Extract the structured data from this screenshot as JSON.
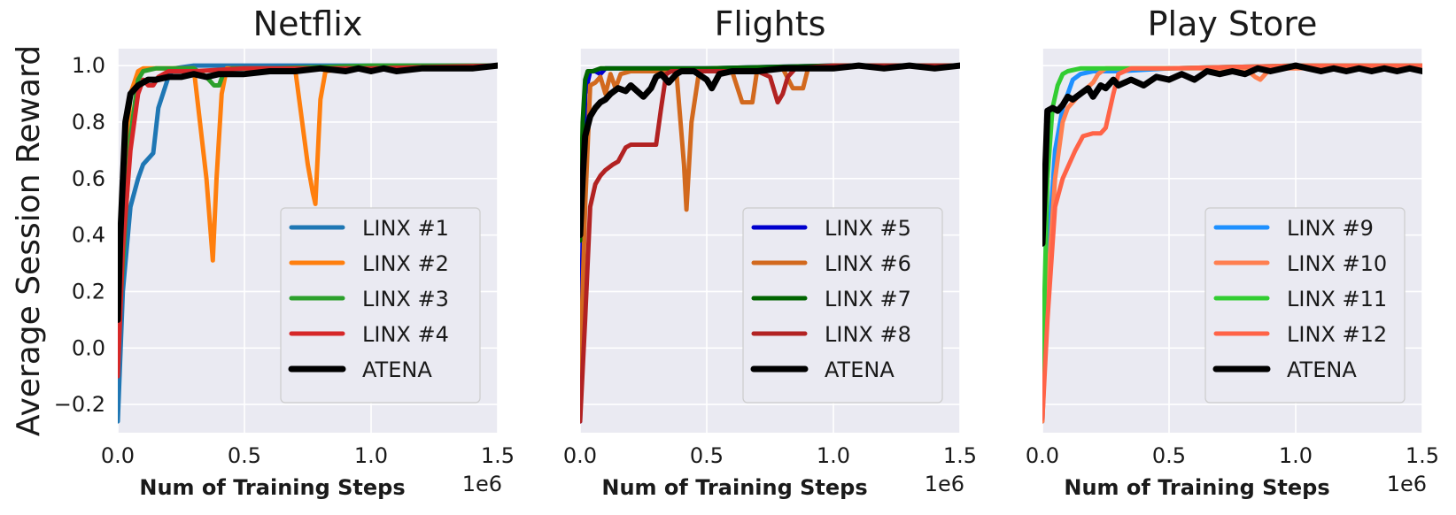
{
  "ylabel": "Average Session Reward",
  "chart_data": [
    {
      "type": "line",
      "title": "Netflix",
      "xlabel": "Num of Training Steps",
      "x_offset_label": "1e6",
      "xlim": [
        0,
        1.5
      ],
      "ylim": [
        -0.3,
        1.06
      ],
      "xticks": [
        0.0,
        0.5,
        1.0,
        1.5
      ],
      "xtick_labels": [
        "0.0",
        "0.5",
        "1.0",
        "1.5"
      ],
      "yticks": [
        -0.2,
        0.0,
        0.2,
        0.4,
        0.6,
        0.8,
        1.0
      ],
      "ytick_labels": [
        "−0.2",
        "0.0",
        "0.2",
        "0.4",
        "0.6",
        "0.8",
        "1.0"
      ],
      "grid": true,
      "legend": "lower-right",
      "series": [
        {
          "name": "LINX #1",
          "color": "#1f77b4",
          "x": [
            0,
            0.02,
            0.05,
            0.08,
            0.1,
            0.14,
            0.16,
            0.2,
            0.22,
            0.3,
            0.5,
            1.0,
            1.5
          ],
          "y": [
            -0.26,
            0.2,
            0.5,
            0.6,
            0.65,
            0.69,
            0.85,
            0.96,
            0.99,
            1.0,
            1.0,
            1.0,
            1.0
          ]
        },
        {
          "name": "LINX #2",
          "color": "#ff7f0e",
          "x": [
            0,
            0.02,
            0.05,
            0.08,
            0.1,
            0.15,
            0.3,
            0.35,
            0.375,
            0.39,
            0.41,
            0.43,
            0.5,
            0.7,
            0.75,
            0.77,
            0.78,
            0.8,
            0.82,
            0.9,
            1.5
          ],
          "y": [
            0.0,
            0.5,
            0.9,
            0.98,
            0.99,
            0.99,
            0.99,
            0.6,
            0.31,
            0.6,
            0.9,
            0.99,
            0.99,
            0.99,
            0.65,
            0.55,
            0.51,
            0.88,
            0.98,
            0.99,
            1.0
          ]
        },
        {
          "name": "LINX #3",
          "color": "#2ca02c",
          "x": [
            0,
            0.02,
            0.05,
            0.08,
            0.1,
            0.15,
            0.3,
            0.35,
            0.38,
            0.4,
            0.42,
            0.45,
            0.6,
            1.0,
            1.5
          ],
          "y": [
            0.0,
            0.3,
            0.75,
            0.95,
            0.98,
            0.99,
            0.99,
            0.96,
            0.93,
            0.93,
            0.98,
            0.99,
            0.99,
            1.0,
            1.0
          ]
        },
        {
          "name": "LINX #4",
          "color": "#d62728",
          "x": [
            0,
            0.02,
            0.05,
            0.08,
            0.1,
            0.12,
            0.14,
            0.16,
            0.2,
            0.3,
            0.5,
            0.7,
            1.0,
            1.5
          ],
          "y": [
            -0.1,
            0.35,
            0.7,
            0.9,
            0.95,
            0.93,
            0.93,
            0.96,
            0.98,
            0.98,
            0.99,
            0.99,
            0.99,
            1.0
          ]
        },
        {
          "name": "ATENA",
          "color": "#000000",
          "x": [
            0,
            0.01,
            0.03,
            0.05,
            0.08,
            0.12,
            0.15,
            0.2,
            0.25,
            0.3,
            0.35,
            0.4,
            0.5,
            0.6,
            0.7,
            0.8,
            0.9,
            0.95,
            1.0,
            1.05,
            1.1,
            1.2,
            1.3,
            1.4,
            1.5
          ],
          "y": [
            0.1,
            0.4,
            0.8,
            0.9,
            0.93,
            0.95,
            0.95,
            0.96,
            0.96,
            0.97,
            0.96,
            0.97,
            0.97,
            0.98,
            0.98,
            0.99,
            0.98,
            0.99,
            0.98,
            0.99,
            0.98,
            0.99,
            0.99,
            0.99,
            1.0
          ]
        }
      ]
    },
    {
      "type": "line",
      "title": "Flights",
      "xlabel": "Num of Training Steps",
      "x_offset_label": "1e6",
      "xlim": [
        0,
        1.5
      ],
      "ylim": [
        -0.3,
        1.06
      ],
      "xticks": [
        0.0,
        0.5,
        1.0,
        1.5
      ],
      "xtick_labels": [
        "0.0",
        "0.5",
        "1.0",
        "1.5"
      ],
      "yticks": [
        -0.2,
        0.0,
        0.2,
        0.4,
        0.6,
        0.8,
        1.0
      ],
      "grid": true,
      "legend": "lower-right",
      "series": [
        {
          "name": "LINX #5",
          "color": "#0000cd",
          "x": [
            0,
            0.01,
            0.02,
            0.04,
            0.06,
            0.08,
            0.1,
            0.2,
            0.5,
            1.0,
            1.5
          ],
          "y": [
            -0.26,
            0.4,
            0.9,
            0.98,
            0.98,
            0.97,
            0.99,
            0.99,
            0.99,
            1.0,
            1.0
          ]
        },
        {
          "name": "LINX #6",
          "color": "#d2691e",
          "x": [
            0,
            0.02,
            0.04,
            0.06,
            0.08,
            0.1,
            0.12,
            0.14,
            0.16,
            0.2,
            0.3,
            0.38,
            0.41,
            0.42,
            0.44,
            0.47,
            0.5,
            0.6,
            0.64,
            0.66,
            0.68,
            0.7,
            0.75,
            0.8,
            0.84,
            0.86,
            0.88,
            0.9,
            1.0,
            1.5
          ],
          "y": [
            -0.1,
            0.5,
            0.93,
            0.94,
            0.96,
            0.9,
            0.97,
            0.92,
            0.97,
            0.98,
            0.98,
            0.98,
            0.65,
            0.49,
            0.8,
            0.98,
            0.98,
            0.98,
            0.87,
            0.87,
            0.87,
            0.99,
            0.99,
            0.99,
            0.92,
            0.92,
            0.92,
            0.99,
            1.0,
            1.0
          ]
        },
        {
          "name": "LINX #7",
          "color": "#006400",
          "x": [
            0,
            0.01,
            0.02,
            0.03,
            0.05,
            0.08,
            0.1,
            0.2,
            0.5,
            1.0,
            1.5
          ],
          "y": [
            0.38,
            0.8,
            0.95,
            0.98,
            0.98,
            0.99,
            0.99,
            0.99,
            0.99,
            1.0,
            1.0
          ]
        },
        {
          "name": "LINX #8",
          "color": "#b22222",
          "x": [
            0,
            0.02,
            0.04,
            0.06,
            0.08,
            0.1,
            0.13,
            0.15,
            0.18,
            0.2,
            0.25,
            0.28,
            0.3,
            0.32,
            0.34,
            0.36,
            0.38,
            0.4,
            0.5,
            0.6,
            0.7,
            0.75,
            0.78,
            0.8,
            0.82,
            0.85,
            1.0,
            1.5
          ],
          "y": [
            -0.26,
            0.1,
            0.5,
            0.58,
            0.61,
            0.63,
            0.65,
            0.66,
            0.71,
            0.72,
            0.72,
            0.72,
            0.72,
            0.85,
            0.97,
            0.98,
            0.98,
            0.98,
            0.98,
            0.98,
            0.98,
            0.96,
            0.87,
            0.9,
            0.96,
            0.99,
            1.0,
            1.0
          ]
        },
        {
          "name": "ATENA",
          "color": "#000000",
          "x": [
            0,
            0.01,
            0.02,
            0.04,
            0.06,
            0.08,
            0.1,
            0.12,
            0.15,
            0.18,
            0.2,
            0.25,
            0.28,
            0.3,
            0.32,
            0.35,
            0.38,
            0.4,
            0.45,
            0.5,
            0.52,
            0.55,
            0.6,
            0.7,
            0.8,
            0.9,
            1.0,
            1.1,
            1.2,
            1.3,
            1.4,
            1.5
          ],
          "y": [
            0.4,
            0.6,
            0.75,
            0.82,
            0.85,
            0.87,
            0.88,
            0.9,
            0.92,
            0.91,
            0.93,
            0.89,
            0.92,
            0.96,
            0.97,
            0.94,
            0.97,
            0.98,
            0.98,
            0.95,
            0.92,
            0.97,
            0.98,
            0.98,
            0.99,
            0.99,
            0.99,
            1.0,
            0.99,
            1.0,
            0.99,
            1.0
          ]
        }
      ]
    },
    {
      "type": "line",
      "title": "Play Store",
      "xlabel": "Num of Training Steps",
      "x_offset_label": "1e6",
      "xlim": [
        0,
        1.5
      ],
      "ylim": [
        -0.3,
        1.06
      ],
      "xticks": [
        0.0,
        0.5,
        1.0,
        1.5
      ],
      "xtick_labels": [
        "0.0",
        "0.5",
        "1.0",
        "1.5"
      ],
      "yticks": [
        -0.2,
        0.0,
        0.2,
        0.4,
        0.6,
        0.8,
        1.0
      ],
      "grid": true,
      "legend": "lower-right",
      "series": [
        {
          "name": "LINX #9",
          "color": "#1e90ff",
          "x": [
            0,
            0.02,
            0.05,
            0.08,
            0.1,
            0.12,
            0.15,
            0.2,
            0.3,
            0.5,
            1.0,
            1.5
          ],
          "y": [
            -0.26,
            0.3,
            0.7,
            0.85,
            0.9,
            0.95,
            0.97,
            0.98,
            0.98,
            0.99,
            1.0,
            1.0
          ]
        },
        {
          "name": "LINX #10",
          "color": "#ff7f50",
          "x": [
            0,
            0.02,
            0.05,
            0.08,
            0.1,
            0.15,
            0.2,
            0.22,
            0.25,
            0.3,
            0.5,
            0.8,
            0.84,
            0.86,
            0.9,
            1.0,
            1.5
          ],
          "y": [
            -0.26,
            0.2,
            0.6,
            0.8,
            0.85,
            0.9,
            0.94,
            0.97,
            0.99,
            0.99,
            0.99,
            0.99,
            0.96,
            0.95,
            0.99,
            0.99,
            1.0
          ]
        },
        {
          "name": "LINX #11",
          "color": "#32cd32",
          "x": [
            0,
            0.02,
            0.04,
            0.06,
            0.08,
            0.1,
            0.15,
            0.2,
            0.5,
            1.0,
            1.5
          ],
          "y": [
            -0.1,
            0.6,
            0.85,
            0.93,
            0.97,
            0.98,
            0.99,
            0.99,
            0.99,
            1.0,
            1.0
          ]
        },
        {
          "name": "LINX #12",
          "color": "#ff6347",
          "x": [
            0,
            0.02,
            0.05,
            0.08,
            0.1,
            0.13,
            0.16,
            0.2,
            0.23,
            0.25,
            0.28,
            0.3,
            0.35,
            0.5,
            1.0,
            1.5
          ],
          "y": [
            -0.25,
            0.1,
            0.5,
            0.6,
            0.64,
            0.7,
            0.75,
            0.76,
            0.76,
            0.78,
            0.9,
            0.97,
            0.99,
            0.99,
            1.0,
            1.0
          ]
        },
        {
          "name": "ATENA",
          "color": "#000000",
          "x": [
            0,
            0.01,
            0.02,
            0.04,
            0.06,
            0.08,
            0.1,
            0.12,
            0.15,
            0.18,
            0.2,
            0.23,
            0.25,
            0.28,
            0.3,
            0.35,
            0.4,
            0.45,
            0.5,
            0.55,
            0.6,
            0.65,
            0.7,
            0.75,
            0.8,
            0.85,
            0.9,
            0.95,
            1.0,
            1.05,
            1.1,
            1.15,
            1.2,
            1.25,
            1.3,
            1.35,
            1.4,
            1.45,
            1.5
          ],
          "y": [
            0.37,
            0.6,
            0.84,
            0.85,
            0.84,
            0.86,
            0.89,
            0.88,
            0.9,
            0.92,
            0.89,
            0.93,
            0.92,
            0.95,
            0.93,
            0.95,
            0.93,
            0.96,
            0.95,
            0.97,
            0.95,
            0.98,
            0.97,
            0.98,
            0.97,
            0.99,
            0.98,
            0.99,
            1.0,
            0.99,
            0.98,
            0.99,
            0.98,
            0.99,
            0.98,
            0.99,
            0.98,
            0.99,
            0.98
          ]
        }
      ]
    }
  ]
}
